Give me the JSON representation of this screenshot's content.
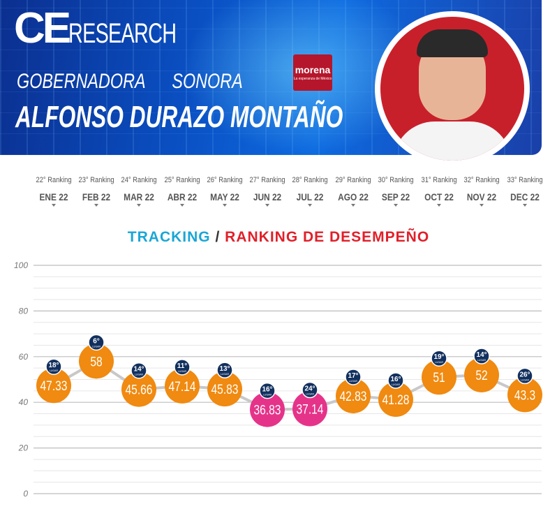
{
  "header": {
    "logo_ce": "CE",
    "logo_research": "RESEARCH",
    "role": "GOBERNADORA",
    "state": "SONORA",
    "name": "ALFONSO DURAZO MONTAÑO",
    "party": "morena",
    "party_tagline": "La esperanza de México"
  },
  "chart_title": {
    "part1": "TRACKING",
    "separator": "/",
    "part2": "RANKING DE DESEMPEÑO"
  },
  "colors": {
    "orange": "#f08a10",
    "pink": "#e6338a",
    "navy": "#12305e",
    "line": "#c8c8c8"
  },
  "chart_data": {
    "type": "line",
    "categories": [
      "ENE 22",
      "FEB 22",
      "MAR 22",
      "ABR 22",
      "MAY 22",
      "JUN 22",
      "JUL 22",
      "AGO 22",
      "SEP 22",
      "OCT 22",
      "NOV 22",
      "DEC 22"
    ],
    "rankings": [
      "22° Ranking",
      "23° Ranking",
      "24° Ranking",
      "25° Ranking",
      "26° Ranking",
      "27° Ranking",
      "28° Ranking",
      "29° Ranking",
      "30° Ranking",
      "31° Ranking",
      "32° Ranking",
      "33° Ranking"
    ],
    "values": [
      47.33,
      58,
      45.66,
      47.14,
      45.83,
      36.83,
      37.14,
      42.83,
      41.28,
      51,
      52,
      43.3
    ],
    "value_labels": [
      "47.33",
      "58",
      "45.66",
      "47.14",
      "45.83",
      "36.83",
      "37.14",
      "42.83",
      "41.28",
      "51",
      "52",
      "43.3"
    ],
    "places": [
      "18°",
      "6°",
      "14°",
      "11°",
      "13°",
      "16°",
      "24°",
      "17°",
      "16°",
      "19°",
      "14°",
      "26°"
    ],
    "place_label": "LUGAR",
    "highlight": [
      false,
      false,
      false,
      false,
      false,
      true,
      true,
      false,
      false,
      false,
      false,
      false
    ],
    "yticks": [
      "100",
      "80",
      "60",
      "40",
      "20",
      "0"
    ],
    "ylim": [
      0,
      100
    ],
    "grid": true
  }
}
